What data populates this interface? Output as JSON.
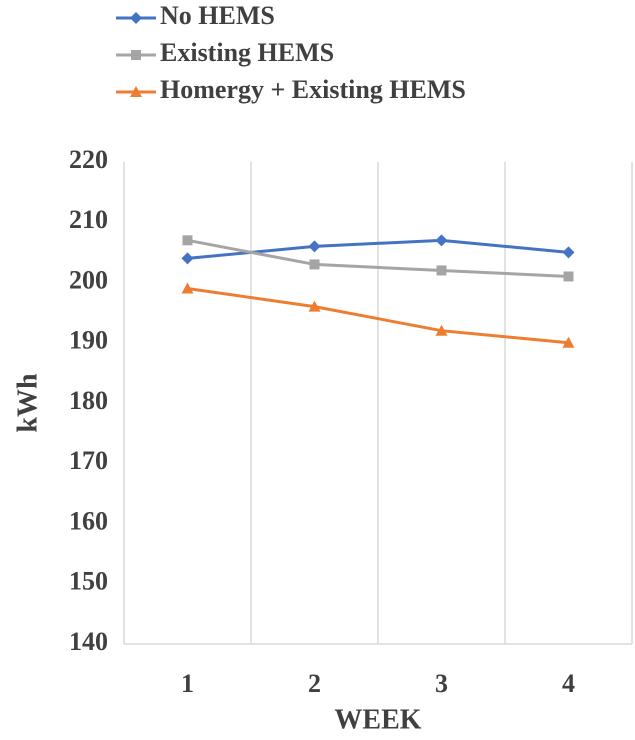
{
  "chart_data": {
    "type": "line",
    "x_label": "WEEK",
    "y_label": "kWh",
    "categories": [
      "1",
      "2",
      "3",
      "4"
    ],
    "series": [
      {
        "name": "No HEMS",
        "color": "#4472c4",
        "marker": "diamond",
        "values": [
          204,
          206,
          207,
          205
        ]
      },
      {
        "name": "Existing HEMS",
        "color": "#a5a5a5",
        "marker": "square",
        "values": [
          207,
          203,
          202,
          201
        ]
      },
      {
        "name": "Homergy + Existing HEMS",
        "color": "#ed7d31",
        "marker": "triangle",
        "values": [
          199,
          196,
          192,
          190
        ]
      }
    ],
    "ylim": [
      140,
      220
    ],
    "yticks": [
      140,
      150,
      160,
      170,
      180,
      190,
      200,
      210,
      220
    ],
    "legend": "top"
  }
}
